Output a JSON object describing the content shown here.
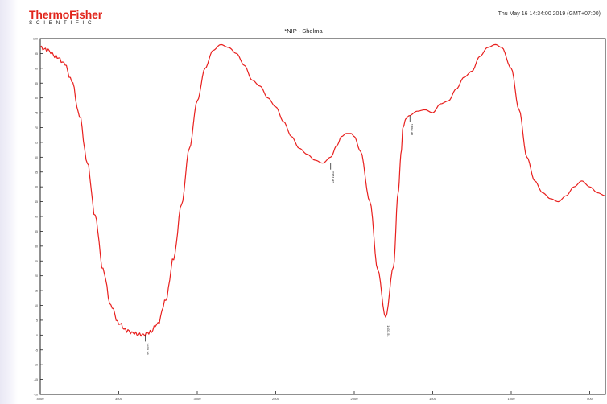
{
  "header": {
    "logo_main": "ThermoFisher",
    "logo_sub": "SCIENTIFIC",
    "timestamp": "Thu May 16 14:34:00 2019 (GMT+07:00)"
  },
  "colors": {
    "spectrum": "#e8201e",
    "logo_red": "#e1251b",
    "axis": "#222222"
  },
  "chart_data": {
    "type": "line",
    "title": "*NIP - Shelma",
    "xlabel": "",
    "ylabel": "",
    "xlim": [
      4000,
      400
    ],
    "ylim": [
      -20,
      100
    ],
    "x_ticks": [
      4000,
      3500,
      3000,
      2500,
      2000,
      1500,
      1000,
      500
    ],
    "y_ticks": [
      100,
      95,
      90,
      85,
      80,
      75,
      70,
      65,
      60,
      55,
      50,
      45,
      40,
      35,
      30,
      25,
      20,
      15,
      10,
      5,
      0,
      -5,
      -10,
      -15,
      -20
    ],
    "grid": false,
    "series": [
      {
        "x": [
          4000,
          3950,
          3900,
          3850,
          3800,
          3750,
          3700,
          3650,
          3600,
          3550,
          3500,
          3450,
          3400,
          3350,
          3300,
          3250,
          3200,
          3150,
          3100,
          3050,
          3000,
          2950,
          2900,
          2850,
          2800,
          2750,
          2700,
          2650,
          2600,
          2550,
          2500,
          2450,
          2400,
          2350,
          2300,
          2250,
          2200,
          2150,
          2110,
          2080,
          2050,
          2020,
          2000,
          1960,
          1900,
          1850,
          1800,
          1750,
          1720,
          1700,
          1690,
          1670,
          1650,
          1600,
          1550,
          1500,
          1450,
          1400,
          1350,
          1300,
          1250,
          1200,
          1150,
          1100,
          1060,
          1000,
          950,
          900,
          850,
          800,
          750,
          700,
          650,
          600,
          550,
          500,
          450,
          400
        ],
        "y": [
          97,
          96,
          94,
          92,
          86,
          74,
          58,
          40,
          22,
          10,
          4,
          1.5,
          0.5,
          0,
          1,
          4,
          12,
          26,
          44,
          63,
          79,
          90,
          96,
          98,
          97,
          95,
          91,
          86,
          84,
          80,
          77,
          72,
          67,
          63,
          61,
          59,
          58,
          60,
          64,
          67,
          68,
          68,
          67,
          62,
          45,
          22,
          6,
          23,
          48,
          62,
          70,
          73,
          74,
          75.5,
          76,
          75,
          78,
          79,
          83,
          87,
          89,
          94,
          97,
          98,
          97,
          90,
          76,
          60,
          52,
          48,
          46,
          45,
          47,
          50,
          52,
          50,
          48,
          47
        ]
      }
    ],
    "peak_labels": [
      {
        "x": 3330,
        "y": 0,
        "text": "3415.36"
      },
      {
        "x": 2150,
        "y": 58,
        "text": "2361.47"
      },
      {
        "x": 1798,
        "y": 6,
        "text": "1633.51"
      },
      {
        "x": 1645,
        "y": 74,
        "text": "1384.41"
      }
    ]
  }
}
